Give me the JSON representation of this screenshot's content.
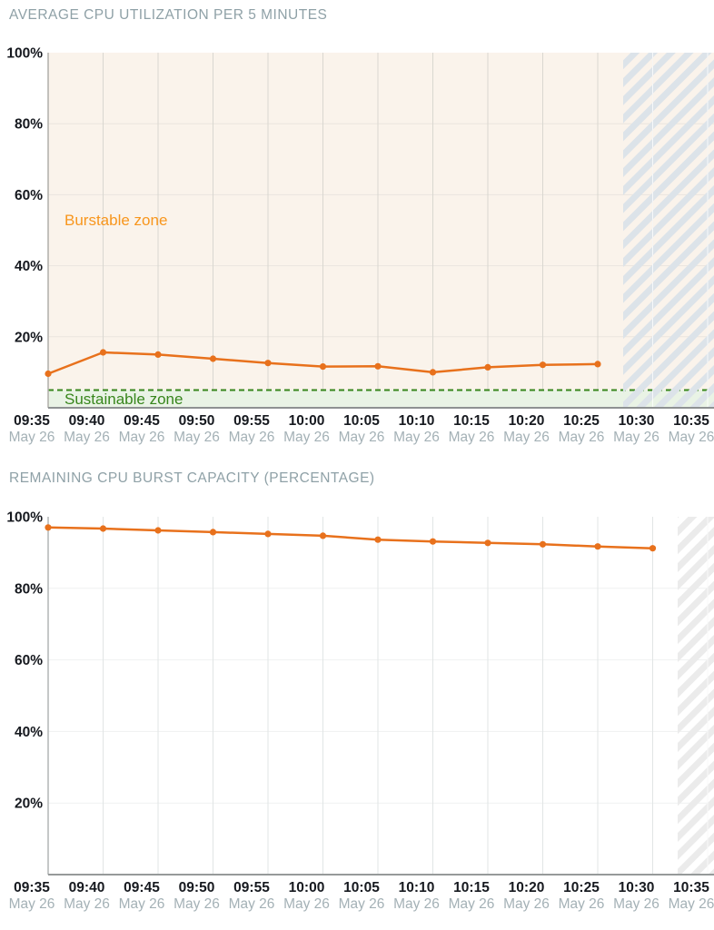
{
  "page": {
    "background": "#ffffff"
  },
  "colors": {
    "title_gray": "#8fa1a7",
    "line_orange": "#e8711c",
    "burstable_orange": "#f8961d",
    "sustainable_green": "#37861c",
    "sustainable_band_green": "#e9f3e5",
    "chart1_bg_cream": "#faf3eb",
    "tick_time_dark": "#16191f",
    "tick_date_gray": "#a4b1b6",
    "hatch_stripe_cream_chart": "#dce3e9",
    "hatch_stripe_white_chart": "#ebebeb"
  },
  "charts": [
    {
      "title": "AVERAGE CPU UTILIZATION PER 5 MINUTES",
      "chart_data": {
        "type": "line",
        "x": [
          "09:35",
          "09:40",
          "09:45",
          "09:50",
          "09:55",
          "10:00",
          "10:05",
          "10:10",
          "10:15",
          "10:20",
          "10:25"
        ],
        "series": [
          {
            "values": [
              9.6,
              15.6,
              15.0,
              13.8,
              12.6,
              11.6,
              11.7,
              10.0,
              11.4,
              12.1,
              12.3
            ]
          }
        ],
        "xticks": [
          {
            "time": "09:35",
            "date": "May 26"
          },
          {
            "time": "09:40",
            "date": "May 26"
          },
          {
            "time": "09:45",
            "date": "May 26"
          },
          {
            "time": "09:50",
            "date": "May 26"
          },
          {
            "time": "09:55",
            "date": "May 26"
          },
          {
            "time": "10:00",
            "date": "May 26"
          },
          {
            "time": "10:05",
            "date": "May 26"
          },
          {
            "time": "10:10",
            "date": "May 26"
          },
          {
            "time": "10:15",
            "date": "May 26"
          },
          {
            "time": "10:20",
            "date": "May 26"
          },
          {
            "time": "10:25",
            "date": "May 26"
          },
          {
            "time": "10:30",
            "date": "May 26"
          },
          {
            "time": "10:35",
            "date": "May 26"
          }
        ],
        "yticks": [
          {
            "label": "100%",
            "value": 100
          },
          {
            "label": "80%",
            "value": 80
          },
          {
            "label": "60%",
            "value": 60
          },
          {
            "label": "40%",
            "value": 40
          },
          {
            "label": "20%",
            "value": 20
          }
        ],
        "ylim": [
          0,
          100
        ],
        "grid": true,
        "annotations": {
          "burstable_zone_label": "Burstable zone",
          "sustainable_zone_label": "Sustainable zone",
          "sustainable_threshold_percent": 5
        }
      }
    },
    {
      "title": "REMAINING CPU BURST CAPACITY (PERCENTAGE)",
      "chart_data": {
        "type": "line",
        "x": [
          "09:35",
          "09:40",
          "09:45",
          "09:50",
          "09:55",
          "10:00",
          "10:05",
          "10:10",
          "10:15",
          "10:20",
          "10:25",
          "10:30"
        ],
        "series": [
          {
            "values": [
              97.0,
              96.7,
              96.2,
              95.7,
              95.2,
              94.7,
              93.6,
              93.1,
              92.7,
              92.3,
              91.7,
              91.2
            ]
          }
        ],
        "xticks": [
          {
            "time": "09:35",
            "date": "May 26"
          },
          {
            "time": "09:40",
            "date": "May 26"
          },
          {
            "time": "09:45",
            "date": "May 26"
          },
          {
            "time": "09:50",
            "date": "May 26"
          },
          {
            "time": "09:55",
            "date": "May 26"
          },
          {
            "time": "10:00",
            "date": "May 26"
          },
          {
            "time": "10:05",
            "date": "May 26"
          },
          {
            "time": "10:10",
            "date": "May 26"
          },
          {
            "time": "10:15",
            "date": "May 26"
          },
          {
            "time": "10:20",
            "date": "May 26"
          },
          {
            "time": "10:25",
            "date": "May 26"
          },
          {
            "time": "10:30",
            "date": "May 26"
          },
          {
            "time": "10:35",
            "date": "May 26"
          }
        ],
        "yticks": [
          {
            "label": "100%",
            "value": 100
          },
          {
            "label": "80%",
            "value": 80
          },
          {
            "label": "60%",
            "value": 60
          },
          {
            "label": "40%",
            "value": 40
          },
          {
            "label": "20%",
            "value": 20
          }
        ],
        "ylim": [
          0,
          100
        ],
        "grid": true
      }
    }
  ]
}
